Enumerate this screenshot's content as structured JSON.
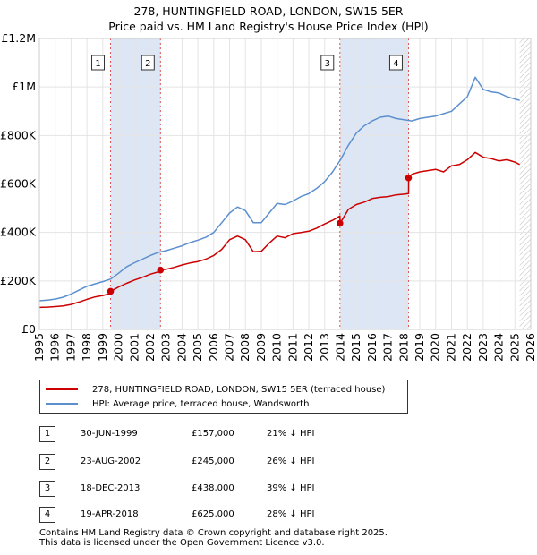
{
  "title_line1": "278, HUNTINGFIELD ROAD, LONDON, SW15 5ER",
  "title_line2": "Price paid vs. HM Land Registry's House Price Index (HPI)",
  "chart_data": {
    "type": "line",
    "title": "278, HUNTINGFIELD ROAD, LONDON, SW15 5ER - Price paid vs. HM Land Registry's House Price Index (HPI)",
    "xlabel": "",
    "ylabel": "",
    "xlim": [
      1995,
      2026
    ],
    "ylim": [
      0,
      1200000
    ],
    "x_ticks": [
      1995,
      1996,
      1997,
      1998,
      1999,
      2000,
      2001,
      2002,
      2003,
      2004,
      2005,
      2006,
      2007,
      2008,
      2009,
      2010,
      2011,
      2012,
      2013,
      2014,
      2015,
      2016,
      2017,
      2018,
      2019,
      2020,
      2021,
      2022,
      2023,
      2024,
      2025,
      2026
    ],
    "y_ticks": [
      {
        "value": 0,
        "label": "£0"
      },
      {
        "value": 200000,
        "label": "£200K"
      },
      {
        "value": 400000,
        "label": "£400K"
      },
      {
        "value": 600000,
        "label": "£600K"
      },
      {
        "value": 800000,
        "label": "£800K"
      },
      {
        "value": 1000000,
        "label": "£1M"
      },
      {
        "value": 1200000,
        "label": "£1.2M"
      }
    ],
    "grid": true,
    "shaded_spans": [
      [
        1999.5,
        2002.65
      ],
      [
        2013.97,
        2018.3
      ]
    ],
    "series": [
      {
        "name": "278, HUNTINGFIELD ROAD, LONDON, SW15 5ER (terraced house)",
        "color": "#cc0000",
        "x": [
          1995.0,
          1995.5,
          1996.0,
          1996.5,
          1997.0,
          1997.5,
          1998.0,
          1998.5,
          1999.0,
          1999.49,
          1999.5,
          2000.0,
          2000.5,
          2001.0,
          2001.5,
          2002.0,
          2002.64,
          2002.65,
          2003.0,
          2003.5,
          2004.0,
          2004.5,
          2005.0,
          2005.5,
          2006.0,
          2006.5,
          2007.0,
          2007.5,
          2008.0,
          2008.5,
          2009.0,
          2009.5,
          2010.0,
          2010.5,
          2011.0,
          2011.5,
          2012.0,
          2012.5,
          2013.0,
          2013.5,
          2013.96,
          2013.97,
          2014.5,
          2015.0,
          2015.5,
          2016.0,
          2016.5,
          2017.0,
          2017.5,
          2018.0,
          2018.29,
          2018.3,
          2018.5,
          2019.0,
          2019.5,
          2020.0,
          2020.5,
          2021.0,
          2021.5,
          2022.0,
          2022.5,
          2023.0,
          2023.5,
          2024.0,
          2024.5,
          2025.0,
          2025.3
        ],
        "y": [
          91000,
          92000,
          94000,
          97000,
          103000,
          113000,
          124000,
          134000,
          140000,
          148000,
          157000,
          175000,
          190000,
          204000,
          215000,
          228000,
          240000,
          245000,
          248000,
          256000,
          266000,
          274000,
          280000,
          290000,
          305000,
          330000,
          370000,
          385000,
          370000,
          320000,
          322000,
          356000,
          385000,
          378000,
          395000,
          400000,
          405000,
          418000,
          435000,
          450000,
          468000,
          438000,
          495000,
          515000,
          525000,
          540000,
          545000,
          548000,
          555000,
          558000,
          560000,
          625000,
          640000,
          650000,
          655000,
          660000,
          650000,
          675000,
          680000,
          700000,
          730000,
          710000,
          705000,
          695000,
          700000,
          690000,
          680000
        ]
      },
      {
        "name": "HPI: Average price, terraced house, Wandsworth",
        "color": "#5b8fcf",
        "x": [
          1995.0,
          1995.5,
          1996.0,
          1996.5,
          1997.0,
          1997.5,
          1998.0,
          1998.5,
          1999.0,
          1999.5,
          2000.0,
          2000.5,
          2001.0,
          2001.5,
          2002.0,
          2002.5,
          2003.0,
          2003.5,
          2004.0,
          2004.5,
          2005.0,
          2005.5,
          2006.0,
          2006.5,
          2007.0,
          2007.5,
          2008.0,
          2008.5,
          2009.0,
          2009.5,
          2010.0,
          2010.5,
          2011.0,
          2011.5,
          2012.0,
          2012.5,
          2013.0,
          2013.5,
          2014.0,
          2014.5,
          2015.0,
          2015.5,
          2016.0,
          2016.5,
          2017.0,
          2017.5,
          2018.0,
          2018.5,
          2019.0,
          2019.5,
          2020.0,
          2020.5,
          2021.0,
          2021.5,
          2022.0,
          2022.5,
          2023.0,
          2023.5,
          2024.0,
          2024.5,
          2025.0,
          2025.3
        ],
        "y": [
          118000,
          121000,
          125000,
          133000,
          146000,
          162000,
          178000,
          188000,
          197000,
          208000,
          232000,
          258000,
          275000,
          290000,
          305000,
          318000,
          325000,
          335000,
          345000,
          358000,
          368000,
          380000,
          400000,
          440000,
          480000,
          505000,
          490000,
          440000,
          440000,
          480000,
          520000,
          515000,
          530000,
          548000,
          560000,
          582000,
          610000,
          650000,
          700000,
          760000,
          810000,
          840000,
          860000,
          875000,
          880000,
          870000,
          865000,
          860000,
          870000,
          875000,
          880000,
          890000,
          900000,
          930000,
          960000,
          1040000,
          990000,
          980000,
          975000,
          960000,
          950000,
          945000
        ]
      }
    ],
    "sales": [
      {
        "n": "1",
        "x": 1999.49,
        "y": 157000
      },
      {
        "n": "2",
        "x": 2002.64,
        "y": 245000
      },
      {
        "n": "3",
        "x": 2013.96,
        "y": 438000
      },
      {
        "n": "4",
        "x": 2018.29,
        "y": 625000
      }
    ]
  },
  "legend": {
    "property_label": "278, HUNTINGFIELD ROAD, LONDON, SW15 5ER (terraced house)",
    "hpi_label": "HPI: Average price, terraced house, Wandsworth",
    "property_color": "#cc0000",
    "hpi_color": "#5b8fcf"
  },
  "sales_table": [
    {
      "n": "1",
      "date": "30-JUN-1999",
      "price": "£157,000",
      "hpi": "21% ↓ HPI"
    },
    {
      "n": "2",
      "date": "23-AUG-2002",
      "price": "£245,000",
      "hpi": "26% ↓ HPI"
    },
    {
      "n": "3",
      "date": "18-DEC-2013",
      "price": "£438,000",
      "hpi": "39% ↓ HPI"
    },
    {
      "n": "4",
      "date": "19-APR-2018",
      "price": "£625,000",
      "hpi": "28% ↓ HPI"
    }
  ],
  "footer_line1": "Contains HM Land Registry data © Crown copyright and database right 2025.",
  "footer_line2": "This data is licensed under the Open Government Licence v3.0."
}
